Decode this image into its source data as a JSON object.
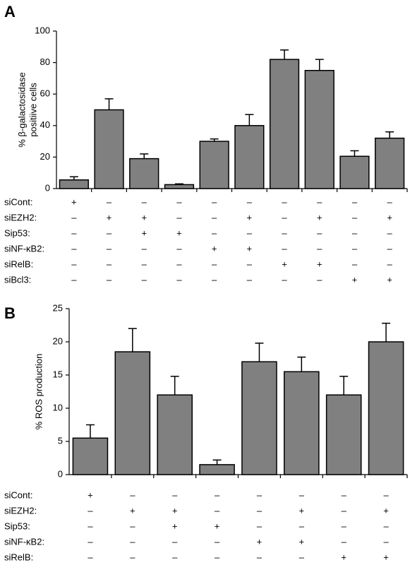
{
  "chart_data": [
    {
      "type": "bar",
      "label": "A",
      "ylabel": [
        "% β-galactosidase",
        "positiive cells"
      ],
      "values": [
        5.5,
        50,
        19,
        2.5,
        30,
        40,
        82,
        75,
        20.5,
        32
      ],
      "errors": [
        2,
        7,
        3,
        0.5,
        1.5,
        7,
        6,
        7,
        3.5,
        4
      ],
      "color": "#808080",
      "ylim": [
        0,
        100
      ],
      "yticks": [
        0,
        20,
        40,
        60,
        80,
        100
      ],
      "conditions": [
        {
          "label": "siCont:",
          "cells": [
            "+",
            "–",
            "–",
            "–",
            "–",
            "–",
            "–",
            "–",
            "–",
            "–"
          ]
        },
        {
          "label": "siEZH2:",
          "cells": [
            "–",
            "+",
            "+",
            "–",
            "–",
            "+",
            "–",
            "+",
            "–",
            "+"
          ]
        },
        {
          "label": "Sip53:",
          "cells": [
            "–",
            "–",
            "+",
            "+",
            "–",
            "–",
            "–",
            "–",
            "–",
            "–"
          ]
        },
        {
          "label": "siNF-κB2:",
          "cells": [
            "–",
            "–",
            "–",
            "–",
            "+",
            "+",
            "–",
            "–",
            "–",
            "–"
          ]
        },
        {
          "label": "siRelB:",
          "cells": [
            "–",
            "–",
            "–",
            "–",
            "–",
            "–",
            "+",
            "+",
            "–",
            "–"
          ]
        },
        {
          "label": "siBcl3:",
          "cells": [
            "–",
            "–",
            "–",
            "–",
            "–",
            "–",
            "–",
            "–",
            "+",
            "+"
          ]
        }
      ]
    },
    {
      "type": "bar",
      "label": "B",
      "ylabel": [
        "% ROS production"
      ],
      "values": [
        5.5,
        18.5,
        12,
        1.5,
        17,
        15.5,
        12,
        20
      ],
      "errors": [
        2,
        3.5,
        2.8,
        0.7,
        2.8,
        2.2,
        2.8,
        2.8
      ],
      "color": "#808080",
      "ylim": [
        0,
        25
      ],
      "yticks": [
        0,
        5,
        10,
        15,
        20,
        25
      ],
      "conditions": [
        {
          "label": "siCont:",
          "cells": [
            "+",
            "–",
            "–",
            "–",
            "–",
            "–",
            "–",
            "–"
          ]
        },
        {
          "label": "siEZH2:",
          "cells": [
            "–",
            "+",
            "+",
            "–",
            "–",
            "+",
            "–",
            "+"
          ]
        },
        {
          "label": "Sip53:",
          "cells": [
            "–",
            "–",
            "+",
            "+",
            "–",
            "–",
            "–",
            "–"
          ]
        },
        {
          "label": "siNF-κB2:",
          "cells": [
            "–",
            "–",
            "–",
            "–",
            "+",
            "+",
            "–",
            "–"
          ]
        },
        {
          "label": "siRelB:",
          "cells": [
            "–",
            "–",
            "–",
            "–",
            "–",
            "–",
            "+",
            "+"
          ]
        }
      ]
    }
  ]
}
